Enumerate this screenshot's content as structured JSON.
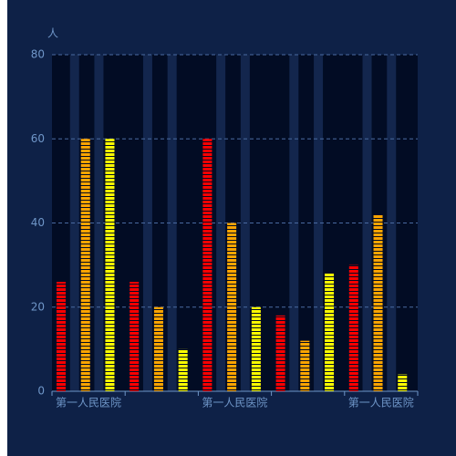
{
  "chart_data": {
    "type": "bar",
    "y_axis_label": "人",
    "categories": [
      "第一人民医院",
      null,
      "第一人民医院",
      null,
      "第一人民医院"
    ],
    "series": [
      {
        "color": "#ff0000",
        "values": [
          26,
          26,
          60,
          18,
          30
        ]
      },
      {
        "color": "#ffa500",
        "values": [
          60,
          20,
          40,
          12,
          42
        ]
      },
      {
        "color": "#ffff00",
        "values": [
          60,
          10,
          20,
          28,
          4
        ]
      }
    ],
    "ylim": [
      0,
      80
    ],
    "yticks": [
      0,
      20,
      40,
      60,
      80
    ],
    "grid": true
  }
}
